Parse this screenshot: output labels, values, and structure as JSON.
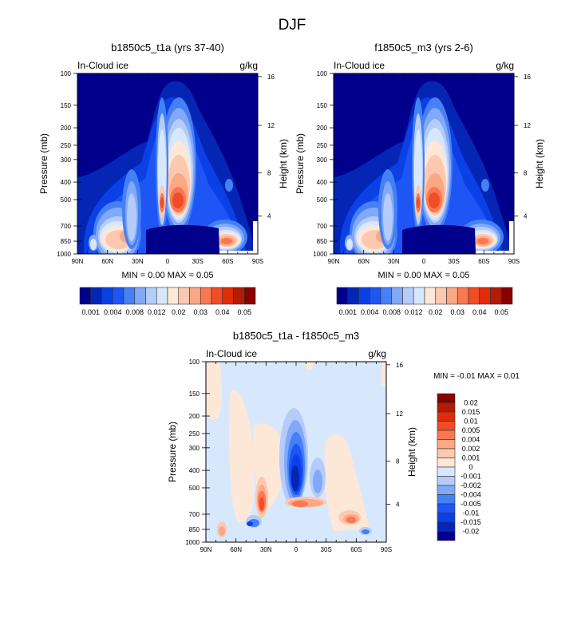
{
  "chart_data": {
    "type": "heatmap",
    "title": "DJF",
    "colors": {
      "abs": [
        "#00008c",
        "#0526b4",
        "#0a40e6",
        "#1e55f5",
        "#4680f5",
        "#82a8f8",
        "#b4ccfa",
        "#d8e8fc",
        "#fde8d8",
        "#fcc8b0",
        "#fca884",
        "#fa7850",
        "#f04c28",
        "#e02c08",
        "#b01c04",
        "#880000"
      ],
      "diff": [
        "#00008c",
        "#0526b4",
        "#0a40e6",
        "#1e55f5",
        "#4680f5",
        "#82a8f8",
        "#b4ccfa",
        "#d8e8fc",
        "#fde8d8",
        "#fcc8b0",
        "#fca884",
        "#fa7850",
        "#f04c28",
        "#e02c08",
        "#b01c04",
        "#880000"
      ]
    },
    "xticks": [
      "90N",
      "60N",
      "30N",
      "0",
      "30S",
      "60S",
      "90S"
    ],
    "pressure_ticks": [
      "100",
      "150",
      "200",
      "250",
      "300",
      "400",
      "500",
      "700",
      "850",
      "1000"
    ],
    "pressure_values": [
      100,
      150,
      200,
      250,
      300,
      400,
      500,
      700,
      850,
      1000
    ],
    "height_ticks": [
      "4",
      "8",
      "12",
      "16"
    ],
    "height_values_mb": [
      616,
      356,
      194,
      104
    ],
    "ylabel": "Pressure (mb)",
    "ylabel_right": "Height (km)",
    "panels": [
      {
        "title": "b1850c5_t1a (yrs 37-40)",
        "variable": "In-Cloud ice",
        "units": "g/kg",
        "minmax": "MIN =   0.00  MAX =   0.05",
        "colorbar_labels": [
          "0.001",
          "0.004",
          "0.008",
          "0.012",
          "0.02",
          "0.03",
          "0.04",
          "0.05"
        ]
      },
      {
        "title": "f1850c5_m3 (yrs 2-6)",
        "variable": "In-Cloud ice",
        "units": "g/kg",
        "minmax": "MIN =   0.00  MAX =   0.05",
        "colorbar_labels": [
          "0.001",
          "0.004",
          "0.008",
          "0.012",
          "0.02",
          "0.03",
          "0.04",
          "0.05"
        ]
      },
      {
        "title": "b1850c5_t1a - f1850c5_m3",
        "variable": "In-Cloud ice",
        "units": "g/kg",
        "minmax": "MIN =  -0.01  MAX =   0.01",
        "colorbar_labels": [
          "0.02",
          "0.015",
          "0.01",
          "0.005",
          "0.004",
          "0.002",
          "0.001",
          "0",
          "-0.001",
          "-0.002",
          "-0.004",
          "-0.005",
          "-0.01",
          "-0.015",
          "-0.02"
        ]
      }
    ]
  }
}
